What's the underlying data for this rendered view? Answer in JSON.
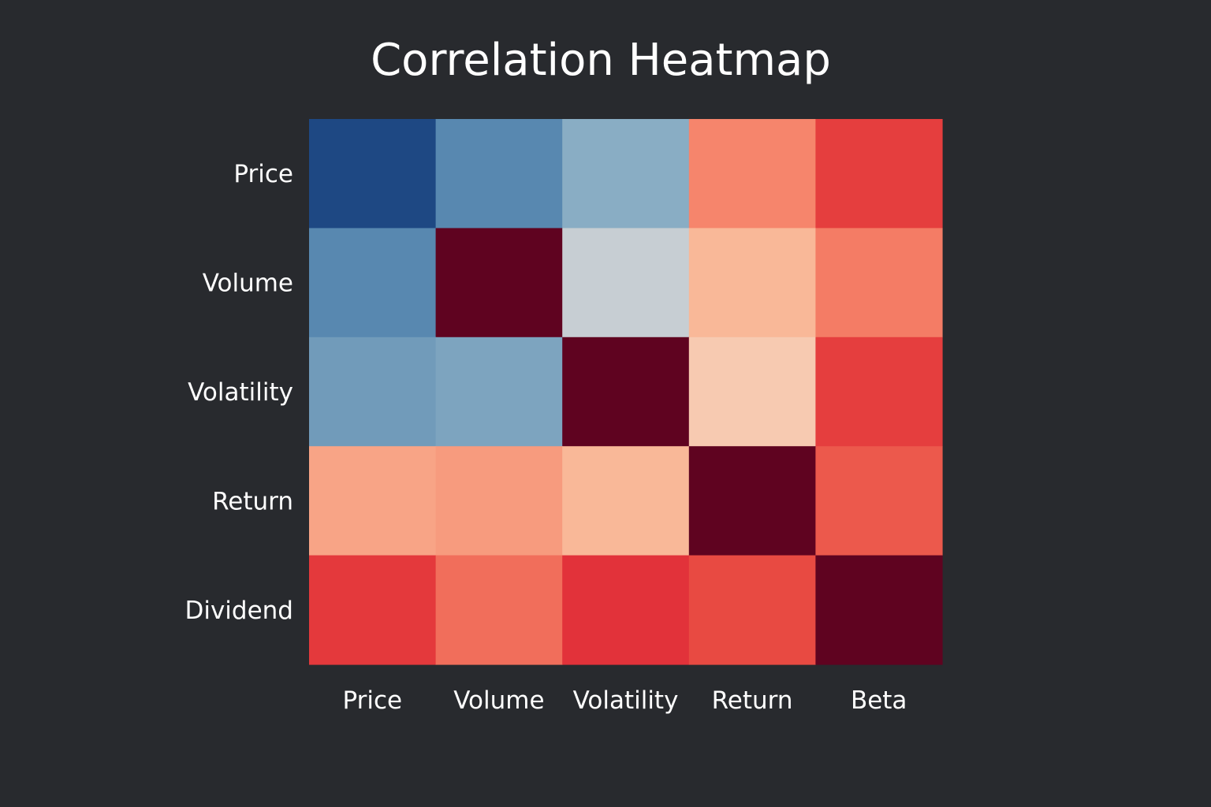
{
  "chart_data": {
    "type": "heatmap",
    "title": "Correlation Heatmap",
    "x_labels": [
      "Price",
      "Volume",
      "Volatility",
      "Return",
      "Beta"
    ],
    "y_labels": [
      "Price",
      "Volume",
      "Volatility",
      "Return",
      "Dividend"
    ],
    "values": [
      [
        -0.95,
        -0.6,
        -0.4,
        0.45,
        0.8
      ],
      [
        -0.6,
        1.0,
        -0.05,
        0.28,
        0.5
      ],
      [
        -0.5,
        -0.45,
        1.0,
        0.18,
        0.8
      ],
      [
        0.35,
        0.38,
        0.28,
        1.0,
        0.68
      ],
      [
        0.82,
        0.58,
        0.85,
        0.75,
        1.0
      ]
    ],
    "color_scale": {
      "min": -1,
      "max": 1,
      "stops": [
        [
          -1.0,
          "#163f7c"
        ],
        [
          -0.6,
          "#5888b0"
        ],
        [
          -0.4,
          "#89adc4"
        ],
        [
          -0.05,
          "#c7ced3"
        ],
        [
          0.18,
          "#f7cab1"
        ],
        [
          0.3,
          "#f9b493"
        ],
        [
          0.45,
          "#f6856c"
        ],
        [
          0.6,
          "#f06a58"
        ],
        [
          0.75,
          "#e84a42"
        ],
        [
          0.85,
          "#e2323a"
        ],
        [
          0.95,
          "#7a0a22"
        ],
        [
          1.0,
          "#5f0320"
        ]
      ]
    },
    "legend": "none",
    "grid": false
  }
}
